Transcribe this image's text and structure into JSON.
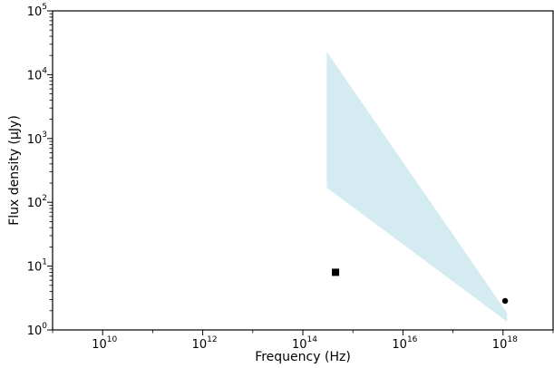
{
  "chart_data": {
    "type": "scatter",
    "xlabel": "Frequency (Hz)",
    "ylabel": "Flux density (μJy)",
    "xscale": "log",
    "yscale": "log",
    "xlim": [
      1000000000.0,
      1e+19
    ],
    "ylim": [
      1,
      100000
    ],
    "x_ticks": [
      {
        "base": "10",
        "exp": "10",
        "value": 10000000000.0
      },
      {
        "base": "10",
        "exp": "12",
        "value": 1000000000000.0
      },
      {
        "base": "10",
        "exp": "14",
        "value": 100000000000000.0
      },
      {
        "base": "10",
        "exp": "16",
        "value": 1e+16
      },
      {
        "base": "10",
        "exp": "18",
        "value": 1e+18
      }
    ],
    "y_ticks": [
      {
        "base": "10",
        "exp": "0",
        "value": 1
      },
      {
        "base": "10",
        "exp": "1",
        "value": 10
      },
      {
        "base": "10",
        "exp": "2",
        "value": 100
      },
      {
        "base": "10",
        "exp": "3",
        "value": 1000
      },
      {
        "base": "10",
        "exp": "4",
        "value": 10000
      },
      {
        "base": "10",
        "exp": "5",
        "value": 100000
      }
    ],
    "band": {
      "color": "#d4ebf1",
      "upper": [
        [
          300000000000000.0,
          23000
        ],
        [
          1.2e+18,
          1.85
        ]
      ],
      "lower": [
        [
          300000000000000.0,
          170
        ],
        [
          1.2e+18,
          1.35
        ]
      ]
    },
    "points": [
      {
        "marker": "square",
        "x": 450000000000000.0,
        "y": 8.0,
        "color": "#000000"
      },
      {
        "marker": "circle",
        "x": 1.1e+18,
        "y": 2.85,
        "color": "#000000"
      }
    ]
  }
}
